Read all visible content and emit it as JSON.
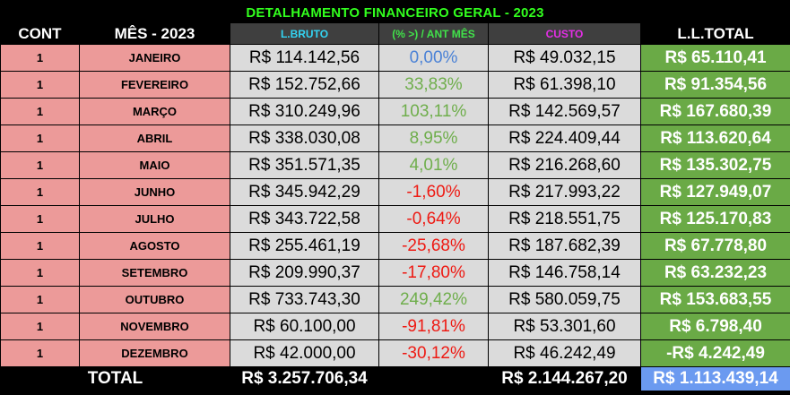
{
  "title": "DETALHAMENTO FINANCEIRO GERAL - 2023",
  "headers": {
    "cont": "CONT",
    "mes": "MÊS - 2023",
    "bruto": "L.BRUTO",
    "pct": "(% >) / ANT MÊS",
    "custo": "CUSTO",
    "ll_total": "L.L.TOTAL"
  },
  "colors": {
    "title": "#32ff1e",
    "bruto_header": "#33d4f3",
    "pct_header": "#41e24a",
    "custo_header": "#e42ee6",
    "month_cells": "#ec9a99",
    "value_cells": "#dbdbdb",
    "ll_cells": "#6aaa46",
    "total_ll": "#6b9af0",
    "pct_positive": "#6fae4c",
    "pct_zero": "#4b82d6",
    "pct_negative": "#ee1a13"
  },
  "rows": [
    {
      "cont": "1",
      "mes": "JANEIRO",
      "bruto": "R$ 114.142,56",
      "pct": "0,00%",
      "pct_tone": "blue",
      "custo": "R$ 49.032,15",
      "ll": "R$ 65.110,41"
    },
    {
      "cont": "1",
      "mes": "FEVEREIRO",
      "bruto": "R$ 152.752,66",
      "pct": "33,83%",
      "pct_tone": "green",
      "custo": "R$ 61.398,10",
      "ll": "R$ 91.354,56"
    },
    {
      "cont": "1",
      "mes": "MARÇO",
      "bruto": "R$ 310.249,96",
      "pct": "103,11%",
      "pct_tone": "green",
      "custo": "R$ 142.569,57",
      "ll": "R$ 167.680,39"
    },
    {
      "cont": "1",
      "mes": "ABRIL",
      "bruto": "R$ 338.030,08",
      "pct": "8,95%",
      "pct_tone": "green",
      "custo": "R$ 224.409,44",
      "ll": "R$ 113.620,64"
    },
    {
      "cont": "1",
      "mes": "MAIO",
      "bruto": "R$ 351.571,35",
      "pct": "4,01%",
      "pct_tone": "green",
      "custo": "R$ 216.268,60",
      "ll": "R$ 135.302,75"
    },
    {
      "cont": "1",
      "mes": "JUNHO",
      "bruto": "R$ 345.942,29",
      "pct": "-1,60%",
      "pct_tone": "red",
      "custo": "R$ 217.993,22",
      "ll": "R$ 127.949,07"
    },
    {
      "cont": "1",
      "mes": "JULHO",
      "bruto": "R$ 343.722,58",
      "pct": "-0,64%",
      "pct_tone": "red",
      "custo": "R$ 218.551,75",
      "ll": "R$ 125.170,83"
    },
    {
      "cont": "1",
      "mes": "AGOSTO",
      "bruto": "R$ 255.461,19",
      "pct": "-25,68%",
      "pct_tone": "red",
      "custo": "R$ 187.682,39",
      "ll": "R$ 67.778,80"
    },
    {
      "cont": "1",
      "mes": "SETEMBRO",
      "bruto": "R$ 209.990,37",
      "pct": "-17,80%",
      "pct_tone": "red",
      "custo": "R$ 146.758,14",
      "ll": "R$ 63.232,23"
    },
    {
      "cont": "1",
      "mes": "OUTUBRO",
      "bruto": "R$ 733.743,30",
      "pct": "249,42%",
      "pct_tone": "green",
      "custo": "R$ 580.059,75",
      "ll": "R$ 153.683,55"
    },
    {
      "cont": "1",
      "mes": "NOVEMBRO",
      "bruto": "R$ 60.100,00",
      "pct": "-91,81%",
      "pct_tone": "red",
      "custo": "R$ 53.301,60",
      "ll": "R$ 6.798,40"
    },
    {
      "cont": "1",
      "mes": "DEZEMBRO",
      "bruto": "R$ 42.000,00",
      "pct": "-30,12%",
      "pct_tone": "red",
      "custo": "R$ 46.242,49",
      "ll": "-R$ 4.242,49"
    }
  ],
  "total": {
    "label": "TOTAL",
    "bruto": "R$ 3.257.706,34",
    "custo": "R$ 2.144.267,20",
    "ll": "R$ 1.113.439,14"
  }
}
